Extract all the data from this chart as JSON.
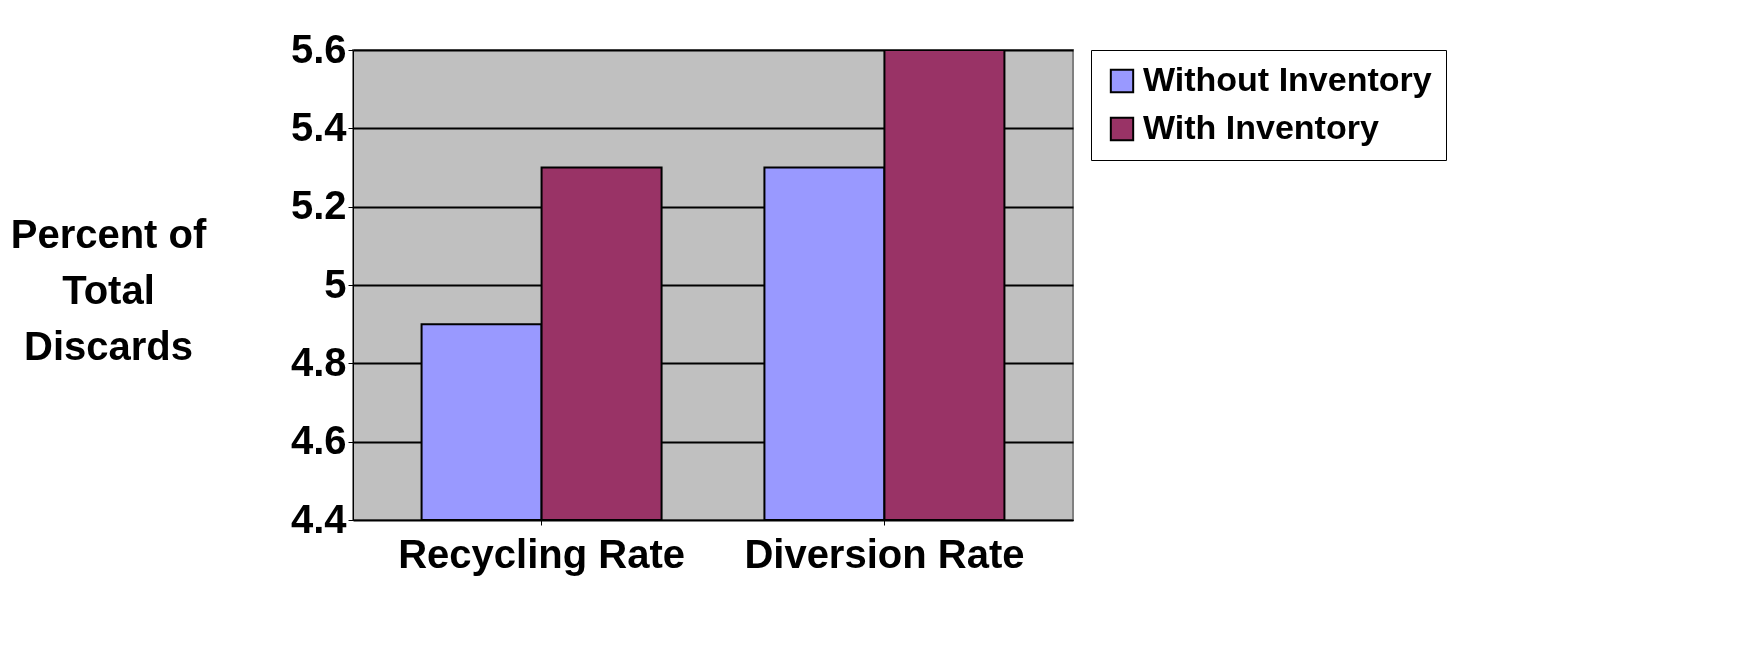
{
  "chart_data": {
    "type": "bar",
    "ylabel": "Percent of\nTotal\nDiscards",
    "categories": [
      "Recycling Rate",
      "Diversion Rate"
    ],
    "series": [
      {
        "name": "Without Inventory",
        "color": "#9999ff",
        "values": [
          4.9,
          5.3
        ]
      },
      {
        "name": "With Inventory",
        "color": "#993366",
        "values": [
          5.3,
          5.6
        ]
      }
    ],
    "ylim": [
      4.4,
      5.6
    ],
    "yticks": [
      4.4,
      4.6,
      4.8,
      5,
      5.2,
      5.4,
      5.6
    ],
    "grid": "y",
    "legend": "right"
  }
}
